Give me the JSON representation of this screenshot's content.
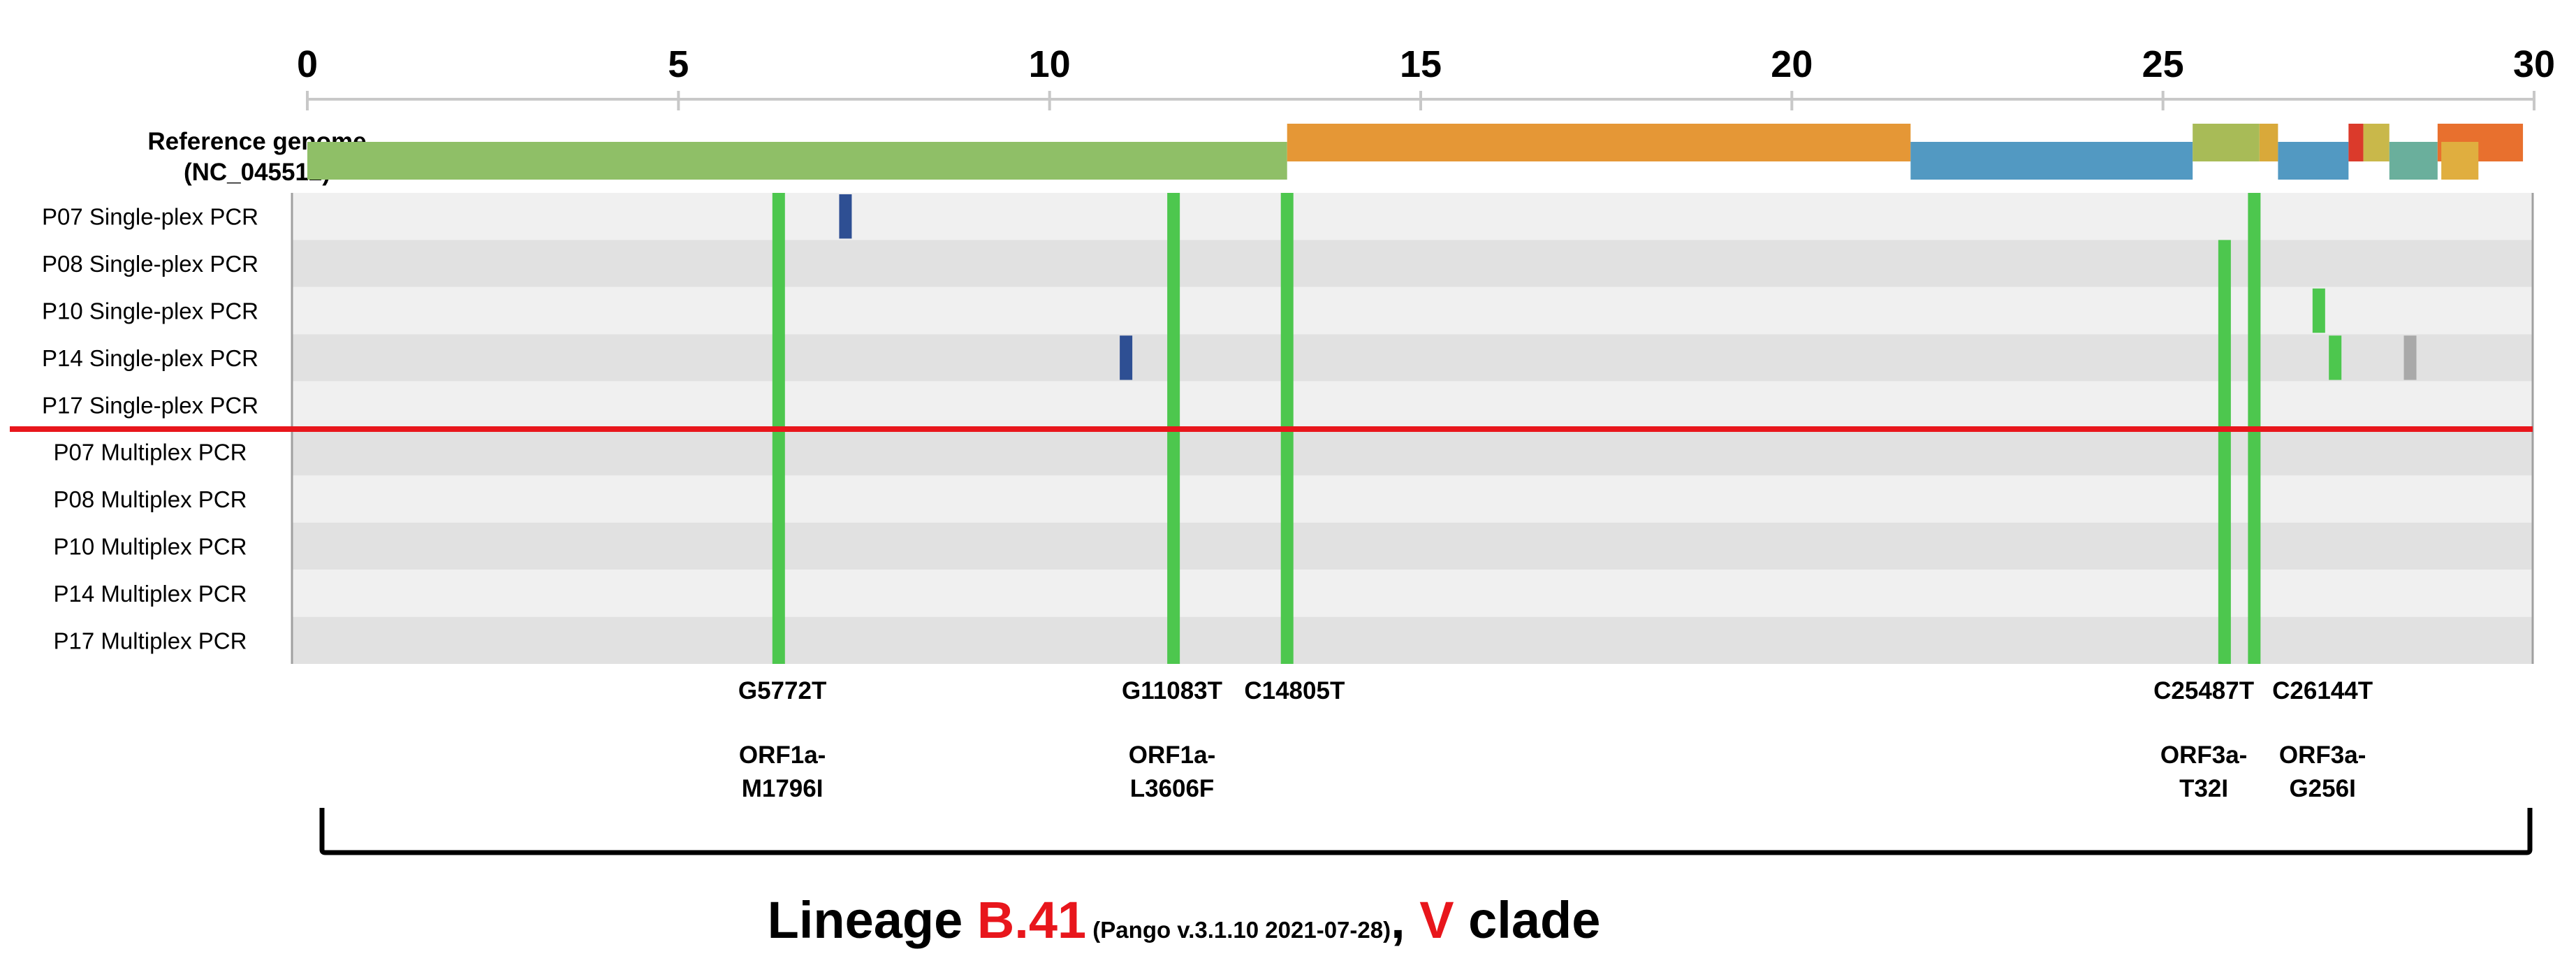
{
  "axis": {
    "min": 0,
    "max": 30,
    "ticks": [
      0,
      5,
      10,
      15,
      20,
      25,
      30
    ],
    "tick_labels": [
      "0",
      "5",
      "10",
      "15",
      "20",
      "25",
      "30"
    ]
  },
  "reference": {
    "label_line1": "Reference genome",
    "label_line2": "(NC_045512)",
    "genes": [
      {
        "start": 0.0,
        "end": 13.2,
        "level": "low",
        "color": "#8FBF67"
      },
      {
        "start": 13.2,
        "end": 21.6,
        "level": "high",
        "color": "#E59736"
      },
      {
        "start": 21.6,
        "end": 25.4,
        "level": "low",
        "color": "#5299C2"
      },
      {
        "start": 25.4,
        "end": 26.3,
        "level": "high",
        "color": "#A8BB57"
      },
      {
        "start": 26.3,
        "end": 26.55,
        "level": "high",
        "color": "#D9A93A"
      },
      {
        "start": 26.55,
        "end": 27.5,
        "level": "low",
        "color": "#5299C2"
      },
      {
        "start": 27.5,
        "end": 27.7,
        "level": "high",
        "color": "#DB3A2B"
      },
      {
        "start": 27.7,
        "end": 28.05,
        "level": "high",
        "color": "#C9B84A"
      },
      {
        "start": 28.05,
        "end": 28.7,
        "level": "low",
        "color": "#6AAF9C"
      },
      {
        "start": 28.7,
        "end": 29.85,
        "level": "high",
        "color": "#E8702E"
      },
      {
        "start": 28.75,
        "end": 29.25,
        "level": "low",
        "color": "#E0AE3F"
      }
    ]
  },
  "samples": [
    "P07 Single-plex  PCR",
    "P08 Single-plex  PCR",
    "P10 Single-plex  PCR",
    "P14 Single-plex  PCR",
    "P17 Single-plex  PCR",
    "P07 Multiplex  PCR",
    "P08 Multiplex  PCR",
    "P10 Multiplex  PCR",
    "P14 Multiplex  PCR",
    "P17 Multiplex  PCR"
  ],
  "row_colors": [
    "#F0F0F0",
    "#E1E1E1"
  ],
  "shared_mutations": [
    {
      "pos": 6.35,
      "from_row": 0,
      "to_row": 9,
      "color": "#4DC74E"
    },
    {
      "pos": 11.67,
      "from_row": 0,
      "to_row": 9,
      "color": "#4DC74E"
    },
    {
      "pos": 13.2,
      "from_row": 0,
      "to_row": 9,
      "color": "#4DC74E"
    },
    {
      "pos": 25.83,
      "from_row": 1,
      "to_row": 9,
      "color": "#4DC74E"
    },
    {
      "pos": 26.23,
      "from_row": 0,
      "to_row": 9,
      "color": "#4DC74E"
    }
  ],
  "private_mutations": [
    {
      "pos": 7.25,
      "row": 0,
      "color": "#2E4F93"
    },
    {
      "pos": 11.03,
      "row": 3,
      "color": "#2E4F93"
    },
    {
      "pos": 27.1,
      "row": 2,
      "color": "#4DC74E"
    },
    {
      "pos": 27.32,
      "row": 3,
      "color": "#4DC74E"
    },
    {
      "pos": 28.33,
      "row": 3,
      "color": "#A9A9A9"
    }
  ],
  "separator_after_row": 4,
  "separator_color": "#E8161C",
  "mutation_labels": [
    {
      "pos": 6.4,
      "nt": "G5772T",
      "aa_line1": "ORF1a-",
      "aa_line2": "M1796I"
    },
    {
      "pos": 11.65,
      "nt": "G11083T",
      "aa_line1": "ORF1a-",
      "aa_line2": "L3606F"
    },
    {
      "pos": 13.3,
      "nt": "C14805T",
      "aa_line1": "",
      "aa_line2": ""
    },
    {
      "pos": 25.55,
      "nt": "C25487T",
      "aa_line1": "ORF3a-",
      "aa_line2": "T32I"
    },
    {
      "pos": 27.15,
      "nt": "C26144T",
      "aa_line1": "ORF3a-",
      "aa_line2": "G256I"
    }
  ],
  "lineage": {
    "prefix": "Lineage ",
    "lineage_name": "B.41",
    "pango": " (Pango v.3.1.10 2021-07-28)",
    "comma": ", ",
    "clade_name": "V",
    "suffix": " clade",
    "accent_color": "#E8161C",
    "text_color": "#000000"
  }
}
